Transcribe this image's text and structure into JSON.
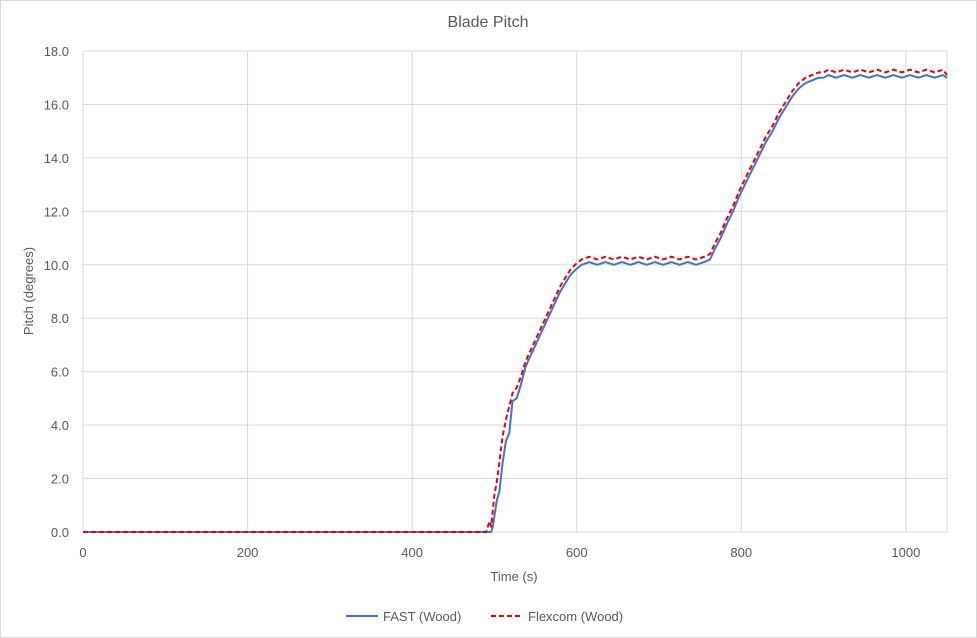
{
  "chart_data": {
    "type": "line",
    "title": "Blade Pitch",
    "xlabel": "Time (s)",
    "ylabel": "Pitch (degrees)",
    "xlim": [
      0,
      1050
    ],
    "ylim": [
      0,
      18
    ],
    "x_ticks": [
      0,
      200,
      400,
      600,
      800,
      1000
    ],
    "y_ticks": [
      0.0,
      2.0,
      4.0,
      6.0,
      8.0,
      10.0,
      12.0,
      14.0,
      16.0,
      18.0
    ],
    "x_tick_labels": [
      "0",
      "200",
      "400",
      "600",
      "800",
      "1000"
    ],
    "y_tick_labels": [
      "0.0",
      "2.0",
      "4.0",
      "6.0",
      "8.0",
      "10.0",
      "12.0",
      "14.0",
      "16.0",
      "18.0"
    ],
    "grid": true,
    "legend_position": "bottom",
    "series": [
      {
        "name": "FAST (Wood)",
        "color": "#4472c4",
        "style": "solid",
        "x": [
          0,
          100,
          200,
          300,
          400,
          490,
          496,
          498,
          500,
          503,
          506,
          510,
          514,
          518,
          522,
          527,
          532,
          538,
          544,
          550,
          556,
          562,
          568,
          574,
          580,
          586,
          592,
          598,
          602,
          606,
          615,
          625,
          635,
          645,
          655,
          665,
          675,
          685,
          695,
          705,
          715,
          725,
          735,
          745,
          755,
          762,
          768,
          775,
          782,
          790,
          798,
          806,
          814,
          822,
          830,
          838,
          846,
          854,
          862,
          870,
          878,
          886,
          894,
          900,
          906,
          915,
          925,
          935,
          945,
          955,
          965,
          975,
          985,
          995,
          1005,
          1015,
          1025,
          1035,
          1045,
          1050
        ],
        "y": [
          0,
          0,
          0,
          0,
          0,
          0,
          0,
          0.2,
          0.6,
          1.2,
          1.5,
          2.6,
          3.4,
          3.7,
          4.9,
          5.0,
          5.5,
          6.2,
          6.6,
          7.0,
          7.4,
          7.8,
          8.2,
          8.6,
          9.0,
          9.3,
          9.6,
          9.8,
          9.9,
          10.0,
          10.1,
          10.0,
          10.1,
          10.0,
          10.1,
          10.0,
          10.1,
          10.0,
          10.1,
          10.0,
          10.1,
          10.0,
          10.1,
          10.0,
          10.1,
          10.2,
          10.6,
          11.0,
          11.5,
          12.0,
          12.6,
          13.1,
          13.6,
          14.1,
          14.6,
          15.0,
          15.5,
          15.9,
          16.3,
          16.6,
          16.8,
          16.9,
          17.0,
          17.0,
          17.1,
          17.0,
          17.1,
          17.0,
          17.1,
          17.0,
          17.1,
          17.0,
          17.1,
          17.0,
          17.1,
          17.0,
          17.1,
          17.0,
          17.1,
          17.0
        ]
      },
      {
        "name": "Flexcom (Wood)",
        "color": "#e8000b",
        "style": "dashed",
        "x": [
          0,
          100,
          200,
          300,
          400,
          490,
          494,
          496,
          498,
          500,
          503,
          506,
          510,
          514,
          518,
          522,
          527,
          532,
          538,
          544,
          550,
          556,
          562,
          568,
          574,
          580,
          586,
          592,
          598,
          602,
          606,
          615,
          625,
          635,
          645,
          655,
          665,
          675,
          685,
          695,
          705,
          715,
          725,
          735,
          745,
          755,
          762,
          768,
          775,
          782,
          790,
          798,
          806,
          814,
          822,
          830,
          838,
          846,
          854,
          862,
          870,
          878,
          886,
          894,
          900,
          906,
          915,
          925,
          935,
          945,
          955,
          965,
          975,
          985,
          995,
          1005,
          1015,
          1025,
          1035,
          1045,
          1050
        ],
        "y": [
          0,
          0,
          0,
          0,
          0,
          0,
          0.4,
          0.2,
          0.8,
          1.4,
          1.9,
          2.6,
          3.6,
          4.2,
          4.7,
          5.2,
          5.4,
          5.8,
          6.4,
          6.8,
          7.2,
          7.6,
          8.0,
          8.4,
          8.8,
          9.2,
          9.5,
          9.8,
          10.0,
          10.1,
          10.2,
          10.3,
          10.2,
          10.3,
          10.2,
          10.3,
          10.2,
          10.3,
          10.2,
          10.3,
          10.2,
          10.3,
          10.2,
          10.3,
          10.2,
          10.3,
          10.4,
          10.8,
          11.2,
          11.7,
          12.2,
          12.8,
          13.3,
          13.8,
          14.3,
          14.8,
          15.2,
          15.7,
          16.1,
          16.5,
          16.8,
          17.0,
          17.1,
          17.2,
          17.2,
          17.3,
          17.2,
          17.3,
          17.2,
          17.3,
          17.2,
          17.3,
          17.2,
          17.3,
          17.2,
          17.3,
          17.2,
          17.3,
          17.2,
          17.3,
          17.1
        ]
      }
    ]
  }
}
